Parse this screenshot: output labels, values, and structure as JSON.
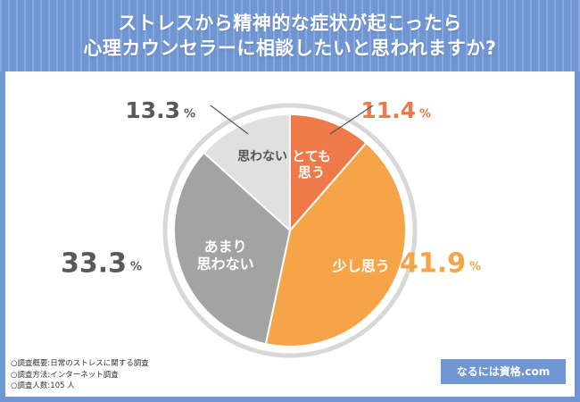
{
  "header": {
    "title_line1": "ストレスから精神的な症状が起こったら",
    "title_line2": "心理カウンセラーに相談したいと思われますか?"
  },
  "chart_data": {
    "type": "pie",
    "title": "ストレスから精神的な症状が起こったら心理カウンセラーに相談したいと思われますか?",
    "categories": [
      "とても思う",
      "少し思う",
      "あまり思わない",
      "思わない"
    ],
    "values": [
      11.4,
      41.9,
      33.3,
      13.3
    ],
    "unit": "%",
    "colors": [
      "#ee7a4a",
      "#f5a548",
      "#a3a3a3",
      "#e0e0e0"
    ],
    "label_colors": [
      "#ee7a4a",
      "#f5a548",
      "#595959",
      "#595959"
    ],
    "slice_label_colors": [
      "#ffffff",
      "#ffffff",
      "#ffffff",
      "#555555"
    ],
    "start": "12 o'clock",
    "direction": "clockwise"
  },
  "footer": {
    "lines": [
      "○調査概要:日常のストレスに関する調査",
      "○調査方法:インターネット調査",
      "○調査人数:105 人"
    ]
  },
  "badge": {
    "text": "なるには資格.com"
  },
  "colors": {
    "background": "#6f95d3",
    "panel": "#ffffff",
    "ring": "#d8d8d8"
  }
}
